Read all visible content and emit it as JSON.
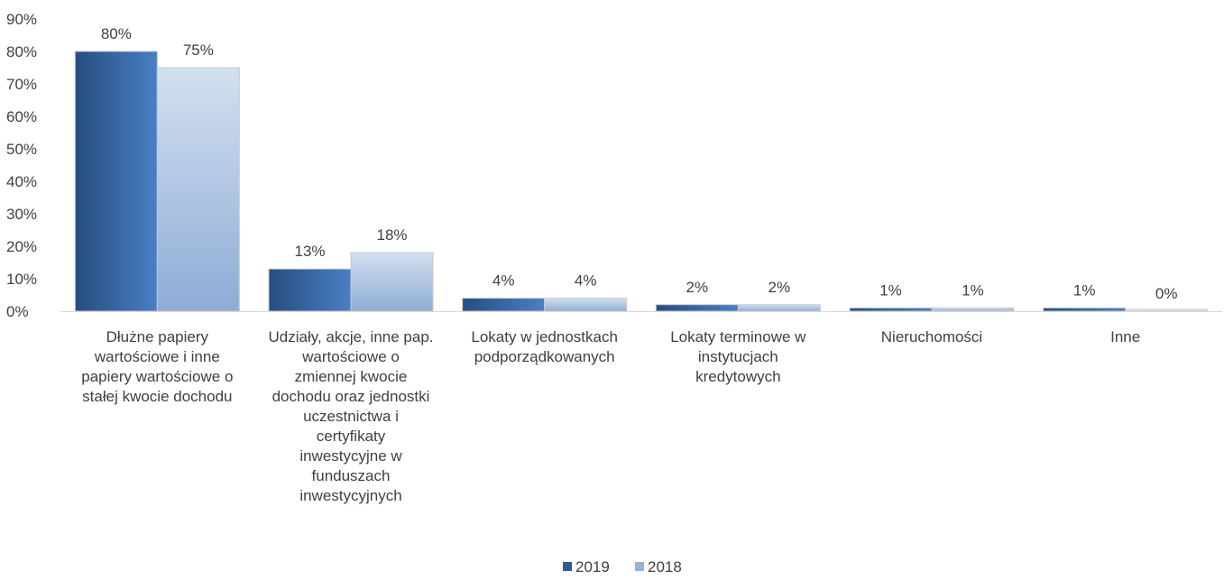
{
  "chart_data": {
    "type": "bar",
    "title": "",
    "xlabel": "",
    "ylabel": "",
    "ylim": [
      0,
      90
    ],
    "y_ticks": [
      "0%",
      "10%",
      "20%",
      "30%",
      "40%",
      "50%",
      "60%",
      "70%",
      "80%",
      "90%"
    ],
    "grid": false,
    "legend_position": "bottom",
    "categories": [
      [
        "Dłużne papiery",
        "wartościowe i inne",
        "papiery wartościowe o",
        "stałej kwocie dochodu"
      ],
      [
        "Udziały, akcje, inne pap.",
        "wartościowe  o",
        "zmiennej kwocie",
        "dochodu oraz jednostki",
        "uczestnictwa i",
        "certyfikaty",
        "inwestycyjne w",
        "funduszach",
        "inwestycyjnych"
      ],
      [
        "Lokaty w jednostkach",
        "podporządkowanych"
      ],
      [
        "Lokaty terminowe w",
        "instytucjach",
        "kredytowych"
      ],
      [
        "Nieruchomości"
      ],
      [
        "Inne"
      ]
    ],
    "series": [
      {
        "name": "2019",
        "values": [
          80,
          13,
          4,
          2,
          1,
          1
        ],
        "labels": [
          "80%",
          "13%",
          "4%",
          "2%",
          "1%",
          "1%"
        ],
        "color": "#2e5a94",
        "color_light": "#4a7fc5"
      },
      {
        "name": "2018",
        "values": [
          75,
          18,
          4,
          2,
          1,
          0
        ],
        "labels": [
          "75%",
          "18%",
          "4%",
          "2%",
          "1%",
          "0%"
        ],
        "color": "#93b1d9",
        "color_light": "#d3e0f0"
      }
    ]
  }
}
